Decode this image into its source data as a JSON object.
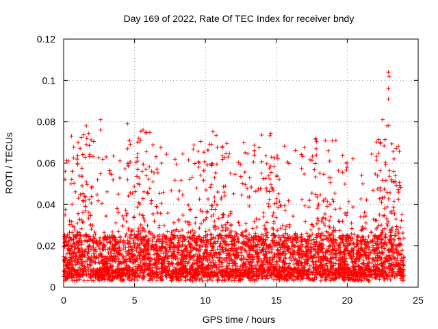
{
  "chart_data": {
    "type": "scatter",
    "title": "Day 169 of 2022, Rate Of TEC Index for receiver bndy",
    "xlabel": "GPS time / hours",
    "ylabel": "ROTI / TECUs",
    "xlim": [
      0,
      25
    ],
    "ylim": [
      0,
      0.12
    ],
    "x_ticks": [
      0,
      5,
      10,
      15,
      20,
      25
    ],
    "x_tick_labels": [
      "0",
      "5",
      "10",
      "15",
      "20",
      "25"
    ],
    "y_ticks": [
      0,
      0.02,
      0.04,
      0.06,
      0.08,
      0.1,
      0.12
    ],
    "y_tick_labels": [
      "0",
      "0.02",
      "0.04",
      "0.06",
      "0.08",
      "0.1",
      "0.12"
    ],
    "grid": true,
    "marker": "+",
    "marker_color": "#ff0000",
    "data_range_x": [
      0,
      24
    ],
    "typical_band": [
      0.005,
      0.025
    ],
    "outliers": [
      {
        "x": 0.55,
        "y": 0.073
      },
      {
        "x": 1.6,
        "y": 0.078
      },
      {
        "x": 1.6,
        "y": 0.069
      },
      {
        "x": 2.6,
        "y": 0.081
      },
      {
        "x": 2.6,
        "y": 0.076
      },
      {
        "x": 3.0,
        "y": 0.063
      },
      {
        "x": 4.5,
        "y": 0.079
      },
      {
        "x": 4.5,
        "y": 0.067
      },
      {
        "x": 5.3,
        "y": 0.072
      },
      {
        "x": 5.6,
        "y": 0.076
      },
      {
        "x": 6.9,
        "y": 0.06
      },
      {
        "x": 11.2,
        "y": 0.068
      },
      {
        "x": 11.6,
        "y": 0.063
      },
      {
        "x": 12.7,
        "y": 0.07
      },
      {
        "x": 12.8,
        "y": 0.065
      },
      {
        "x": 19.2,
        "y": 0.071
      },
      {
        "x": 22.5,
        "y": 0.081
      },
      {
        "x": 22.8,
        "y": 0.078
      },
      {
        "x": 22.9,
        "y": 0.104
      },
      {
        "x": 22.95,
        "y": 0.102
      },
      {
        "x": 22.9,
        "y": 0.096
      },
      {
        "x": 22.9,
        "y": 0.091
      }
    ]
  }
}
